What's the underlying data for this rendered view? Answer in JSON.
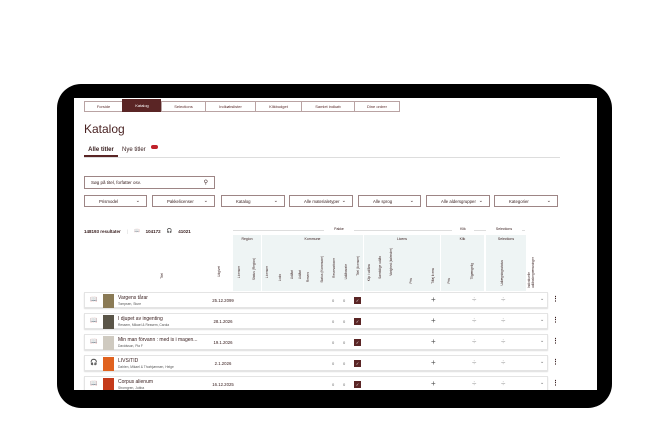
{
  "nav": [
    "Forside",
    "Katalog",
    "Selections",
    "Indkøbslister",
    "Klikbudget",
    "Samlet indkøb",
    "Dine ordrer"
  ],
  "page_title": "Katalog",
  "tabs": {
    "all": "Alle titler",
    "new": "Nye titler"
  },
  "search": {
    "placeholder": "Søg på titel, forfatter osv."
  },
  "filters": [
    "Prismodel",
    "Pakkelicenser",
    "Katalog",
    "Alle materialetyper",
    "Alle sprog",
    "Alle aldersgrupper",
    "Kategorier"
  ],
  "results": {
    "count": "148193 resultater",
    "ebooks": "104172",
    "audiobooks": "41021"
  },
  "header": {
    "group_pakke": "Pakke",
    "group_klik": "Klik",
    "group_selections": "Selections",
    "region": "Region",
    "kommune": "Kommune",
    "licens": "Licens",
    "klik": "Klik",
    "selections": "Selections",
    "titel": "Titel",
    "udgivet": "Udgivet",
    "region_cols": [
      "Licenser",
      "Status (Region)"
    ],
    "kommune_cols": [
      "Licenser",
      "Lodn",
      "Udlånt",
      "Udlånt",
      "Reserv",
      "Status (Kommune)",
      "Reservationer",
      "Udlånsrate",
      "Titel (licenser)"
    ],
    "licens_cols": [
      "Klip i udlåns",
      "Samtidige udlån",
      "Varighed (kalender)",
      "Pris",
      "Tilføj licens"
    ],
    "klik_cols": [
      "Pris",
      "Tilgængelig"
    ],
    "selections_cols": [
      "Udlægningsstatus"
    ],
    "extra": "Individuelle udlånsbegrænsninger"
  },
  "rows": [
    {
      "type": "book",
      "title": "Vargens tårar",
      "author": "Tompsen, Sture",
      "date": "25.12.2099",
      "a": "0",
      "b": "0",
      "cover": "#8a7a55"
    },
    {
      "type": "book",
      "title": "I djupet av ingenting",
      "author": "Ressem, Mikael & Ressem, Carola",
      "date": "28.1.2026",
      "a": "0",
      "b": "0",
      "cover": "#5a5548"
    },
    {
      "type": "book",
      "title": "Min man förvann : med is i magen...",
      "author": "Davidsson, Pia F",
      "date": "19.1.2026",
      "a": "0",
      "b": "0",
      "cover": "#cfcac0"
    },
    {
      "type": "audio",
      "title": "LIVS/TID",
      "author": "Dahlen, Mikael & Thorbjørnsen, Helge",
      "date": "2.1.2026",
      "a": "0",
      "b": "0",
      "cover": "#e0621f"
    },
    {
      "type": "book",
      "title": "Corpus alienum",
      "author": "Stromgren, Jubba",
      "date": "16.12.2025",
      "a": "0",
      "b": "0",
      "cover": "#c43a1a"
    }
  ],
  "colors": {
    "accent": "#5a2525",
    "badge": "#c0212a",
    "header_bg": "#eef4f4"
  }
}
